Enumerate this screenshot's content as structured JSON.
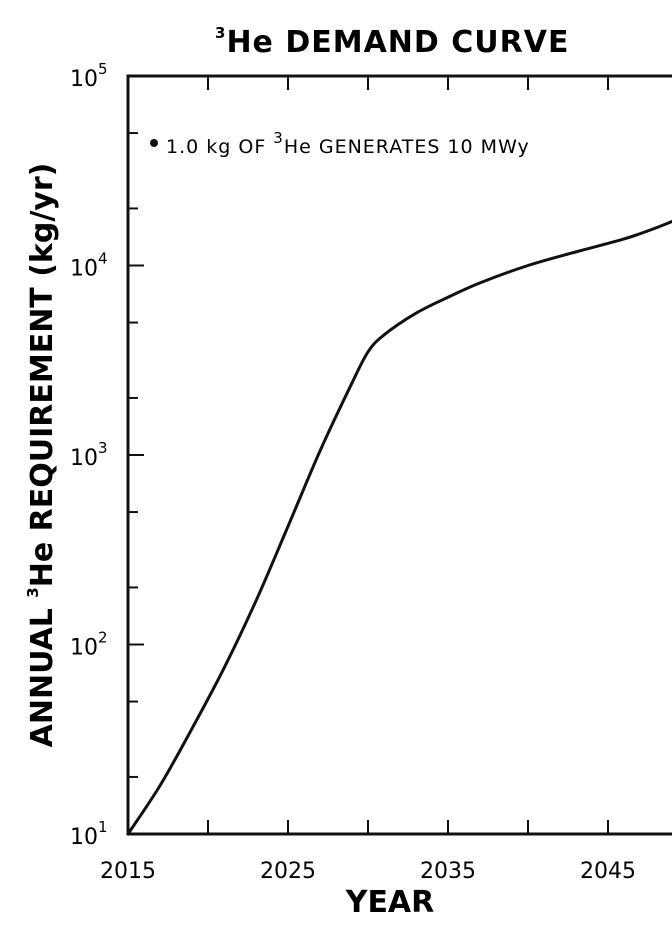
{
  "chart_data": {
    "type": "line",
    "title": {
      "superscript": "3",
      "text": "He DEMAND CURVE"
    },
    "xlabel": "YEAR",
    "ylabel": {
      "prefix": "ANNUAL ",
      "superscript": "3",
      "suffix": "He REQUIREMENT (kg/yr)"
    },
    "annotation": {
      "prefix": "1.0 kg OF ",
      "superscript": "3",
      "suffix": "He GENERATES 10 MWy"
    },
    "xlim": [
      2015,
      2050
    ],
    "ylim": [
      10,
      100000
    ],
    "yscale": "log",
    "grid": false,
    "x_tick_labels": [
      "2015",
      "2025",
      "2035",
      "2045"
    ],
    "y_tick_labels": [
      {
        "base": "10",
        "exp": "1"
      },
      {
        "base": "10",
        "exp": "2"
      },
      {
        "base": "10",
        "exp": "3"
      },
      {
        "base": "10",
        "exp": "4"
      },
      {
        "base": "10",
        "exp": "5"
      }
    ],
    "series": [
      {
        "x": [
          2015,
          2017,
          2019,
          2021,
          2023,
          2025,
          2027,
          2029,
          2030,
          2031,
          2033,
          2035,
          2037,
          2040,
          2043,
          2046,
          2048,
          2050
        ],
        "y": [
          10,
          18,
          36,
          75,
          170,
          420,
          1050,
          2400,
          3500,
          4300,
          5600,
          6800,
          8100,
          10000,
          11800,
          13800,
          15800,
          18500
        ]
      }
    ]
  }
}
